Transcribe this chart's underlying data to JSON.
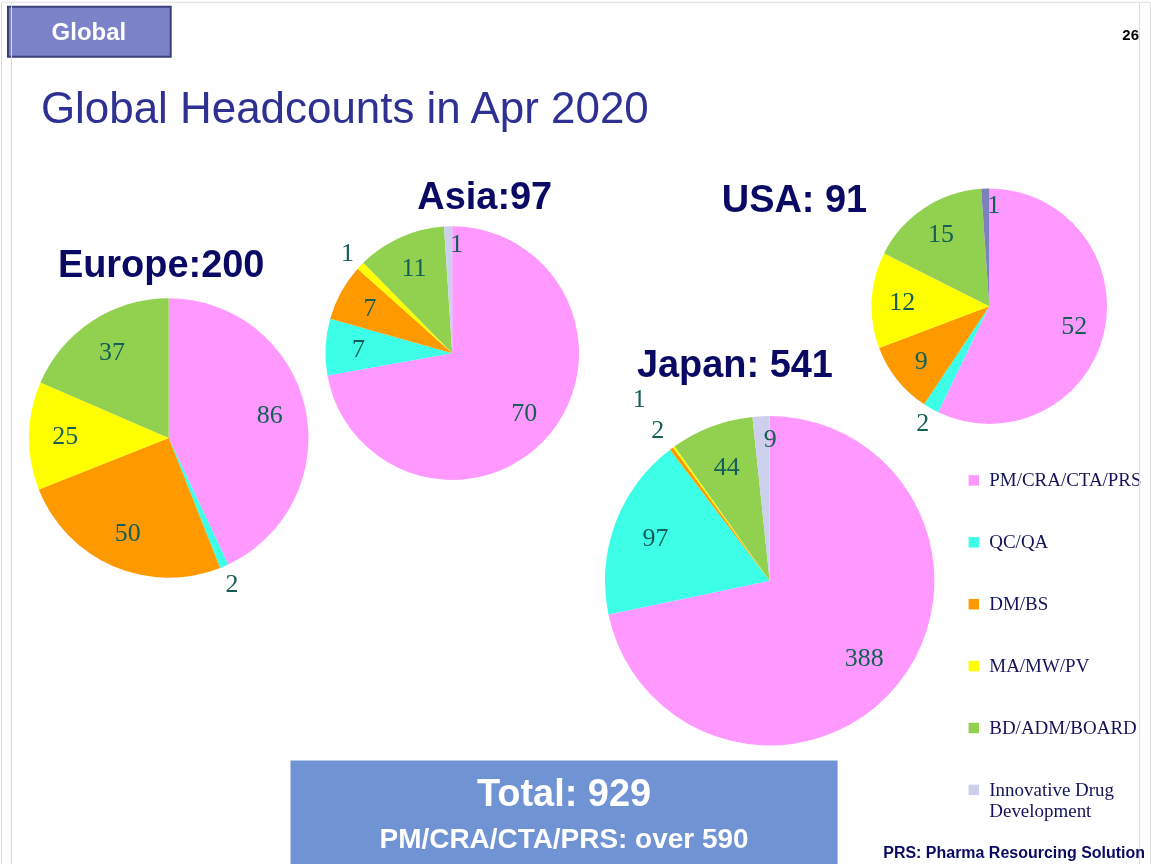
{
  "chart_data": [
    {
      "type": "other",
      "title": "Global Headcounts in Apr 2020",
      "annotations": [
        "Global",
        "26"
      ]
    },
    {
      "type": "pie",
      "categories": [
        "PM/CRA/CTA/PRS",
        "QC/QA",
        "DM/BS",
        "MA/MW/PV",
        "BD/ADM/BOARD",
        "Innovative Drug Development"
      ],
      "colors": [
        "#ff99ff",
        "#3dffe8",
        "#ff9900",
        "#ffff00",
        "#92d050",
        "#ccd0ec"
      ],
      "data_labels": true,
      "legend": "right",
      "series": [
        {
          "name": "Europe:200",
          "values": [
            86,
            2,
            50,
            25,
            37,
            null
          ]
        },
        {
          "name": "Asia:97",
          "values": [
            70,
            7,
            7,
            1,
            11,
            1
          ]
        },
        {
          "name": "USA: 91",
          "values": [
            52,
            2,
            9,
            12,
            15,
            1
          ],
          "colors": [
            "#ff99ff",
            "#3dffe8",
            "#ff9900",
            "#ffff00",
            "#92d050",
            "#7b81bd"
          ]
        },
        {
          "name": "Japan: 541",
          "values": [
            388,
            97,
            2,
            1,
            44,
            9
          ]
        }
      ]
    },
    {
      "type": "other",
      "annotations": [
        "Total: 929",
        "PM/CRA/CTA/PRS: over 590",
        "PRS: Pharma Resourcing Solution"
      ]
    }
  ]
}
